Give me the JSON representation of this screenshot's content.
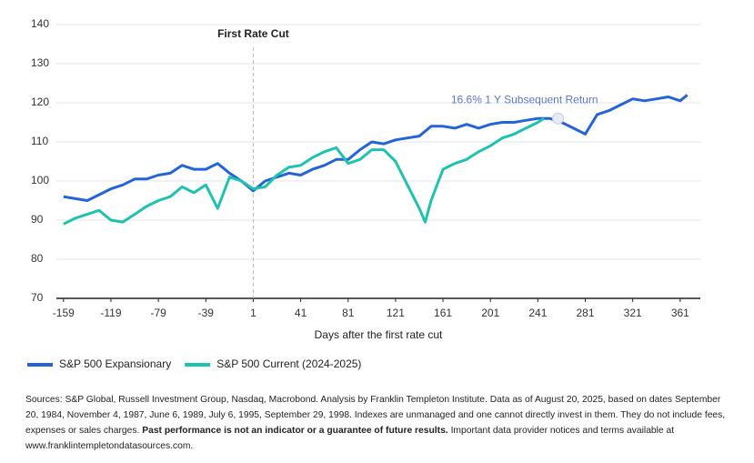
{
  "chart_data": {
    "type": "line",
    "xlabel": "Days after the first rate cut",
    "xlim": [
      -165,
      378
    ],
    "ylim": [
      70,
      140
    ],
    "xticks": [
      -159,
      -119,
      -79,
      -39,
      1,
      41,
      81,
      121,
      161,
      201,
      241,
      281,
      321,
      361
    ],
    "yticks": [
      70,
      80,
      90,
      100,
      110,
      120,
      130,
      140
    ],
    "grid": true,
    "event": {
      "label": "First Rate Cut",
      "x": 1
    },
    "annotation": {
      "text": "16.6% 1 Y Subsequent Return",
      "x": 258,
      "y": 116
    },
    "series": [
      {
        "name": "S&P 500 Expansionary",
        "color": "#2463d8",
        "x": [
          -159,
          -149,
          -139,
          -129,
          -119,
          -109,
          -99,
          -89,
          -79,
          -69,
          -59,
          -49,
          -39,
          -29,
          -19,
          -9,
          1,
          11,
          21,
          31,
          41,
          51,
          61,
          71,
          81,
          91,
          101,
          111,
          121,
          131,
          141,
          151,
          161,
          171,
          181,
          191,
          201,
          211,
          221,
          231,
          241,
          251,
          261,
          271,
          281,
          291,
          301,
          311,
          321,
          331,
          341,
          351,
          361,
          367
        ],
        "values": [
          96,
          95.5,
          95,
          96.5,
          98,
          99,
          100.5,
          100.5,
          101.5,
          102,
          104,
          103,
          103,
          104.5,
          102,
          100,
          97.5,
          100,
          101,
          102,
          101.5,
          103,
          104,
          105.5,
          105.5,
          108,
          110,
          109.5,
          110.5,
          111,
          111.5,
          114,
          114,
          113.5,
          114.5,
          113.5,
          114.5,
          115,
          115,
          115.5,
          116,
          116,
          115,
          113.5,
          112,
          117,
          118,
          119.5,
          121,
          120.5,
          121,
          121.5,
          120.5,
          122
        ]
      },
      {
        "name": "S&P 500 Current (2024-2025)",
        "color": "#1ec3b0",
        "x": [
          -159,
          -149,
          -139,
          -129,
          -119,
          -109,
          -99,
          -89,
          -79,
          -69,
          -59,
          -49,
          -39,
          -29,
          -19,
          -9,
          1,
          11,
          21,
          31,
          41,
          51,
          61,
          71,
          81,
          91,
          101,
          111,
          121,
          131,
          141,
          146,
          151,
          161,
          171,
          181,
          191,
          201,
          211,
          221,
          231,
          241,
          246
        ],
        "values": [
          89,
          90.5,
          91.5,
          92.5,
          90,
          89.5,
          91.5,
          93.5,
          95,
          96,
          98.5,
          97,
          99,
          93,
          101,
          100,
          98,
          98.5,
          101.5,
          103.5,
          104,
          106,
          107.5,
          108.5,
          104.5,
          105.5,
          108,
          108,
          105,
          99,
          93,
          89.5,
          95,
          103,
          104.5,
          105.5,
          107.5,
          109,
          111,
          112,
          113.5,
          115,
          116
        ]
      }
    ]
  },
  "notes": {
    "text": "Sources: S&P Global, Russell Investment Group, Nasdaq, Macrobond. Analysis by Franklin Templeton Institute. Data as of August 20, 2025, based on dates September 20, 1984, November 4, 1987, June 6, 1989, July 6, 1995, September 29, 1998. Indexes are unmanaged and one cannot directly invest in them. They do not include fees, expenses or sales charges.",
    "bold": "Past performance is not an indicator or a guarantee of future results.",
    "after": "Important data provider notices and terms available at www.franklintempletondatasources.com."
  }
}
